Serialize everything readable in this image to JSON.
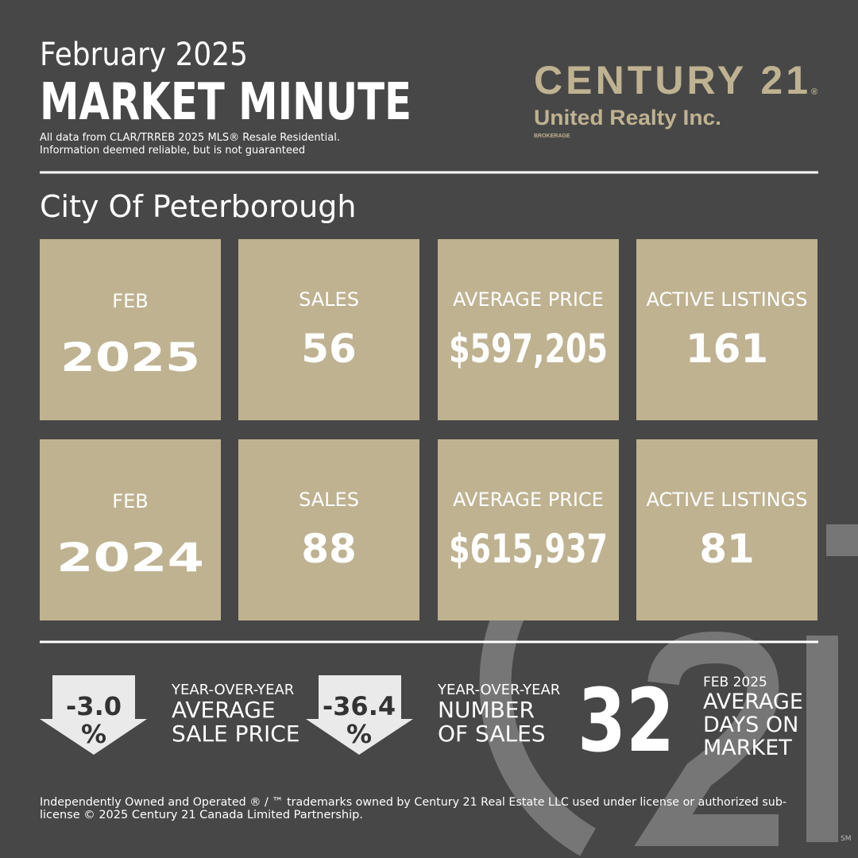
{
  "header": {
    "date": "February 2025",
    "title": "MARKET MINUTE",
    "source": [
      "All data from CLAR/TRREB 2025 MLS® Resale  Residential.",
      "Information deemed reliable, but is not guaranteed"
    ]
  },
  "logo": {
    "brand": "CENTURY 21",
    "mark": "®",
    "office": "United Realty Inc.",
    "type": "BROKERAGE"
  },
  "city": "City Of Peterborough",
  "rows": [
    {
      "month": "FEB",
      "year": "2025",
      "stats": [
        {
          "label": "SALES",
          "value": "56"
        },
        {
          "label": "AVERAGE PRICE",
          "value": "$597,205"
        },
        {
          "label": "ACTIVE LISTINGS",
          "value": "161"
        }
      ]
    },
    {
      "month": "FEB",
      "year": "2024",
      "stats": [
        {
          "label": "SALES",
          "value": "88"
        },
        {
          "label": "AVERAGE PRICE",
          "value": "$615,937"
        },
        {
          "label": "ACTIVE LISTINGS",
          "value": "81"
        }
      ]
    }
  ],
  "summary": [
    {
      "value": "-3.0",
      "unit": "%",
      "label": [
        "YEAR-OVER-YEAR",
        "AVERAGE",
        "SALE PRICE"
      ]
    },
    {
      "value": "-36.4",
      "unit": "%",
      "label": [
        "YEAR-OVER-YEAR",
        "NUMBER",
        "OF SALES"
      ]
    },
    {
      "value": "32",
      "label": [
        "FEB 2025",
        "AVERAGE",
        "DAYS ON",
        "MARKET"
      ]
    }
  ],
  "footer": [
    "Independently Owned and Operated ® / ™ trademarks owned by Century 21 Real Estate LLC used under license or authorized sub-",
    "license © 2025 Century 21 Canada Limited Partnership."
  ],
  "service_mark": "SM"
}
